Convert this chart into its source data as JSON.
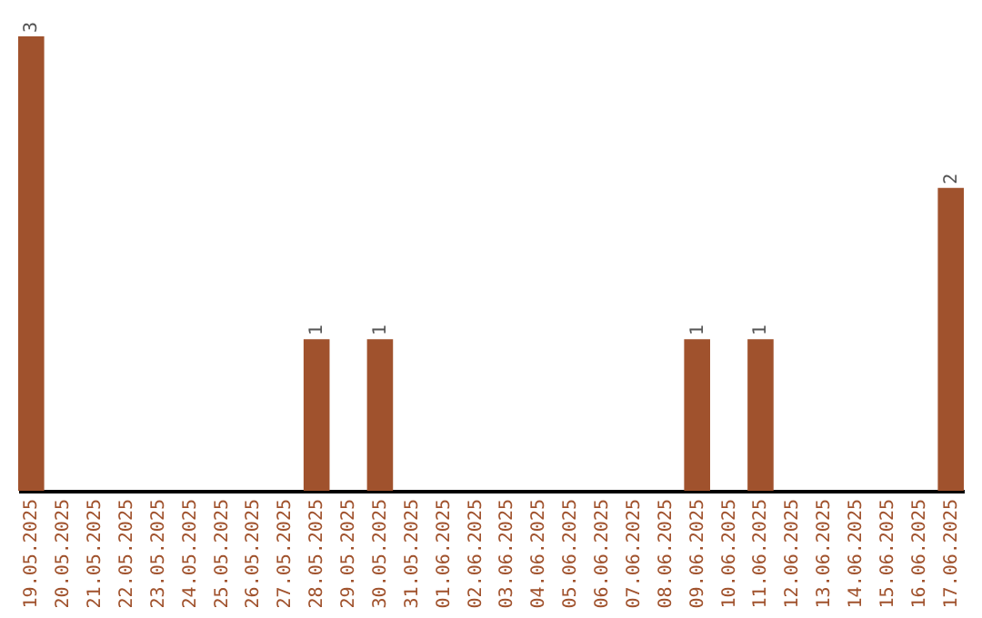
{
  "chart_data": {
    "type": "bar",
    "categories": [
      "19.05.2025",
      "20.05.2025",
      "21.05.2025",
      "22.05.2025",
      "23.05.2025",
      "24.05.2025",
      "25.05.2025",
      "26.05.2025",
      "27.05.2025",
      "28.05.2025",
      "29.05.2025",
      "30.05.2025",
      "31.05.2025",
      "01.06.2025",
      "02.06.2025",
      "03.06.2025",
      "04.06.2025",
      "05.06.2025",
      "06.06.2025",
      "07.06.2025",
      "08.06.2025",
      "09.06.2025",
      "10.06.2025",
      "11.06.2025",
      "12.06.2025",
      "13.06.2025",
      "14.06.2025",
      "15.06.2025",
      "16.06.2025",
      "17.06.2025"
    ],
    "values": [
      3,
      0,
      0,
      0,
      0,
      0,
      0,
      0,
      0,
      1,
      0,
      1,
      0,
      0,
      0,
      0,
      0,
      0,
      0,
      0,
      0,
      1,
      0,
      1,
      0,
      0,
      0,
      0,
      0,
      2
    ],
    "value_labels": [
      "3",
      null,
      null,
      null,
      null,
      null,
      null,
      null,
      null,
      "1",
      null,
      "1",
      null,
      null,
      null,
      null,
      null,
      null,
      null,
      null,
      null,
      "1",
      null,
      "1",
      null,
      null,
      null,
      null,
      null,
      "2"
    ],
    "color": "#a0522d"
  }
}
